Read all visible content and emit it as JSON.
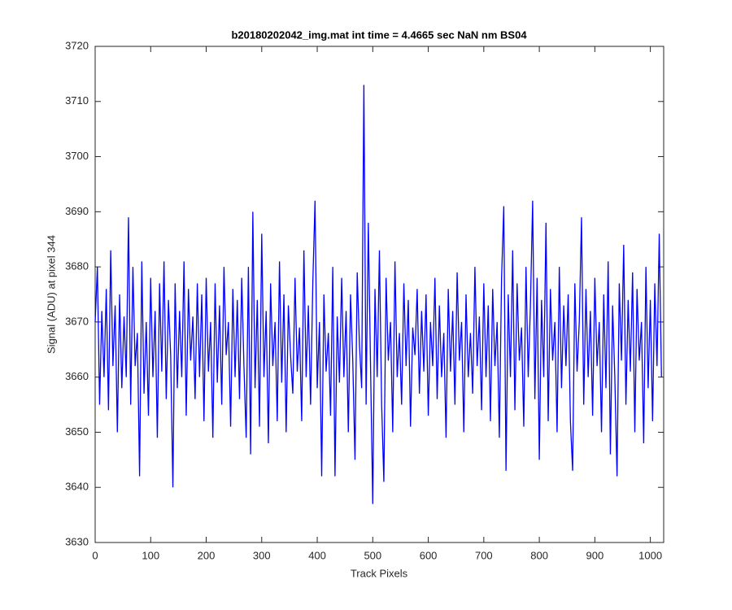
{
  "chart_data": {
    "type": "line",
    "title": "b20180202042_img.mat int time = 4.4665 sec  NaN nm BS04",
    "xlabel": "Track Pixels",
    "ylabel": "Signal (ADU) at pixel 344",
    "xlim": [
      0,
      1024
    ],
    "ylim": [
      3630,
      3720
    ],
    "xticks": [
      0,
      100,
      200,
      300,
      400,
      500,
      600,
      700,
      800,
      900,
      1000
    ],
    "yticks": [
      3630,
      3640,
      3650,
      3660,
      3670,
      3680,
      3690,
      3700,
      3710,
      3720
    ],
    "x": [
      0,
      4,
      8,
      12,
      16,
      20,
      24,
      28,
      32,
      36,
      40,
      44,
      48,
      52,
      56,
      60,
      64,
      68,
      72,
      76,
      80,
      84,
      88,
      92,
      96,
      100,
      104,
      108,
      112,
      116,
      120,
      124,
      128,
      132,
      136,
      140,
      144,
      148,
      152,
      156,
      160,
      164,
      168,
      172,
      176,
      180,
      184,
      188,
      192,
      196,
      200,
      204,
      208,
      212,
      216,
      220,
      224,
      228,
      232,
      236,
      240,
      244,
      248,
      252,
      256,
      260,
      264,
      268,
      272,
      276,
      280,
      284,
      288,
      292,
      296,
      300,
      304,
      308,
      312,
      316,
      320,
      324,
      328,
      332,
      336,
      340,
      344,
      348,
      352,
      356,
      360,
      364,
      368,
      372,
      376,
      380,
      384,
      388,
      392,
      396,
      400,
      404,
      408,
      412,
      416,
      420,
      424,
      428,
      432,
      436,
      440,
      444,
      448,
      452,
      456,
      460,
      464,
      468,
      472,
      476,
      480,
      484,
      488,
      492,
      496,
      500,
      504,
      508,
      512,
      516,
      520,
      524,
      528,
      532,
      536,
      540,
      544,
      548,
      552,
      556,
      560,
      564,
      568,
      572,
      576,
      580,
      584,
      588,
      592,
      596,
      600,
      604,
      608,
      612,
      616,
      620,
      624,
      628,
      632,
      636,
      640,
      644,
      648,
      652,
      656,
      660,
      664,
      668,
      672,
      676,
      680,
      684,
      688,
      692,
      696,
      700,
      704,
      708,
      712,
      716,
      720,
      724,
      728,
      732,
      736,
      740,
      744,
      748,
      752,
      756,
      760,
      764,
      768,
      772,
      776,
      780,
      784,
      788,
      792,
      796,
      800,
      804,
      808,
      812,
      816,
      820,
      824,
      828,
      832,
      836,
      840,
      844,
      848,
      852,
      856,
      860,
      864,
      868,
      872,
      876,
      880,
      884,
      888,
      892,
      896,
      900,
      904,
      908,
      912,
      916,
      920,
      924,
      928,
      932,
      936,
      940,
      944,
      948,
      952,
      956,
      960,
      964,
      968,
      972,
      976,
      980,
      984,
      988,
      992,
      996,
      1000,
      1004,
      1008,
      1012,
      1016,
      1020
    ],
    "series": [
      {
        "color": "#0000ff",
        "values": [
          3670,
          3680,
          3655,
          3672,
          3660,
          3676,
          3654,
          3683,
          3662,
          3673,
          3650,
          3675,
          3658,
          3671,
          3660,
          3689,
          3655,
          3680,
          3662,
          3668,
          3642,
          3681,
          3657,
          3670,
          3653,
          3678,
          3660,
          3672,
          3649,
          3677,
          3661,
          3681,
          3656,
          3674,
          3664,
          3640,
          3677,
          3658,
          3672,
          3660,
          3681,
          3653,
          3676,
          3663,
          3671,
          3656,
          3677,
          3660,
          3675,
          3652,
          3678,
          3661,
          3670,
          3649,
          3677,
          3659,
          3673,
          3655,
          3680,
          3664,
          3670,
          3651,
          3676,
          3660,
          3674,
          3656,
          3678,
          3662,
          3649,
          3680,
          3646,
          3690,
          3658,
          3674,
          3651,
          3686,
          3660,
          3672,
          3648,
          3677,
          3662,
          3670,
          3652,
          3681,
          3659,
          3675,
          3650,
          3673,
          3664,
          3657,
          3678,
          3661,
          3669,
          3652,
          3683,
          3660,
          3673,
          3655,
          3677,
          3692,
          3658,
          3670,
          3642,
          3675,
          3661,
          3668,
          3653,
          3680,
          3642,
          3671,
          3659,
          3678,
          3660,
          3672,
          3650,
          3675,
          3663,
          3645,
          3679,
          3666,
          3658,
          3713,
          3655,
          3688,
          3662,
          3637,
          3676,
          3660,
          3683,
          3655,
          3641,
          3678,
          3663,
          3670,
          3650,
          3681,
          3660,
          3668,
          3655,
          3677,
          3662,
          3674,
          3651,
          3669,
          3664,
          3676,
          3657,
          3672,
          3661,
          3675,
          3653,
          3670,
          3662,
          3678,
          3656,
          3673,
          3660,
          3668,
          3649,
          3676,
          3661,
          3672,
          3655,
          3679,
          3663,
          3670,
          3650,
          3675,
          3660,
          3668,
          3657,
          3680,
          3662,
          3671,
          3654,
          3677,
          3660,
          3673,
          3652,
          3676,
          3662,
          3670,
          3649,
          3678,
          3691,
          3643,
          3675,
          3660,
          3683,
          3654,
          3677,
          3663,
          3669,
          3651,
          3680,
          3660,
          3673,
          3692,
          3656,
          3678,
          3645,
          3674,
          3660,
          3688,
          3652,
          3676,
          3663,
          3670,
          3650,
          3680,
          3658,
          3673,
          3662,
          3675,
          3652,
          3643,
          3677,
          3661,
          3670,
          3689,
          3655,
          3676,
          3660,
          3672,
          3653,
          3678,
          3662,
          3670,
          3650,
          3675,
          3658,
          3681,
          3646,
          3673,
          3660,
          3642,
          3677,
          3663,
          3684,
          3655,
          3674,
          3661,
          3679,
          3650,
          3676,
          3663,
          3670,
          3648,
          3680,
          3658,
          3674,
          3652,
          3677,
          3662,
          3686,
          3660
        ]
      }
    ]
  }
}
